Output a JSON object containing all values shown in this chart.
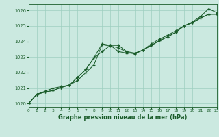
{
  "title": "Graphe pression niveau de la mer (hPa)",
  "bg_color": "#cbe9e0",
  "grid_color": "#9ecfbf",
  "line_color": "#1a5c2a",
  "xmin": 0,
  "xmax": 23,
  "ymin": 1019.8,
  "ymax": 1026.4,
  "yticks": [
    1020,
    1021,
    1022,
    1023,
    1024,
    1025,
    1026
  ],
  "xticks": [
    0,
    1,
    2,
    3,
    4,
    5,
    6,
    7,
    8,
    9,
    10,
    11,
    12,
    13,
    14,
    15,
    16,
    17,
    18,
    19,
    20,
    21,
    22,
    23
  ],
  "line1_x": [
    0,
    1,
    2,
    3,
    4,
    5,
    6,
    7,
    8,
    9,
    10,
    11,
    12,
    13,
    14,
    15,
    16,
    17,
    18,
    19,
    20,
    21,
    22,
    23
  ],
  "line1_y": [
    1020.0,
    1020.6,
    1020.8,
    1021.0,
    1021.1,
    1021.2,
    1021.5,
    1022.0,
    1022.5,
    1023.8,
    1023.7,
    1023.6,
    1023.3,
    1023.2,
    1023.45,
    1023.75,
    1024.05,
    1024.3,
    1024.6,
    1025.0,
    1025.2,
    1025.5,
    1025.75,
    1025.75
  ],
  "line2_x": [
    0,
    1,
    2,
    3,
    4,
    5,
    6,
    7,
    8,
    9,
    10,
    11,
    12,
    13,
    14,
    15,
    16,
    17,
    18,
    19,
    20,
    21,
    22,
    23
  ],
  "line2_y": [
    1020.0,
    1020.6,
    1020.75,
    1020.85,
    1021.05,
    1021.2,
    1021.7,
    1022.2,
    1022.95,
    1023.85,
    1023.75,
    1023.35,
    1023.25,
    1023.25,
    1023.45,
    1023.75,
    1024.05,
    1024.3,
    1024.6,
    1025.0,
    1025.2,
    1025.5,
    1025.75,
    1025.75
  ],
  "line3_x": [
    0,
    1,
    2,
    3,
    4,
    5,
    6,
    7,
    8,
    9,
    10,
    11,
    12,
    13,
    14,
    15,
    16,
    17,
    18,
    19,
    20,
    21,
    22,
    23
  ],
  "line3_y": [
    1020.0,
    1020.6,
    1020.75,
    1020.85,
    1021.05,
    1021.2,
    1021.7,
    1022.2,
    1022.95,
    1023.35,
    1023.75,
    1023.75,
    1023.35,
    1023.25,
    1023.45,
    1023.85,
    1024.15,
    1024.4,
    1024.7,
    1025.0,
    1025.25,
    1025.6,
    1026.1,
    1025.85
  ]
}
